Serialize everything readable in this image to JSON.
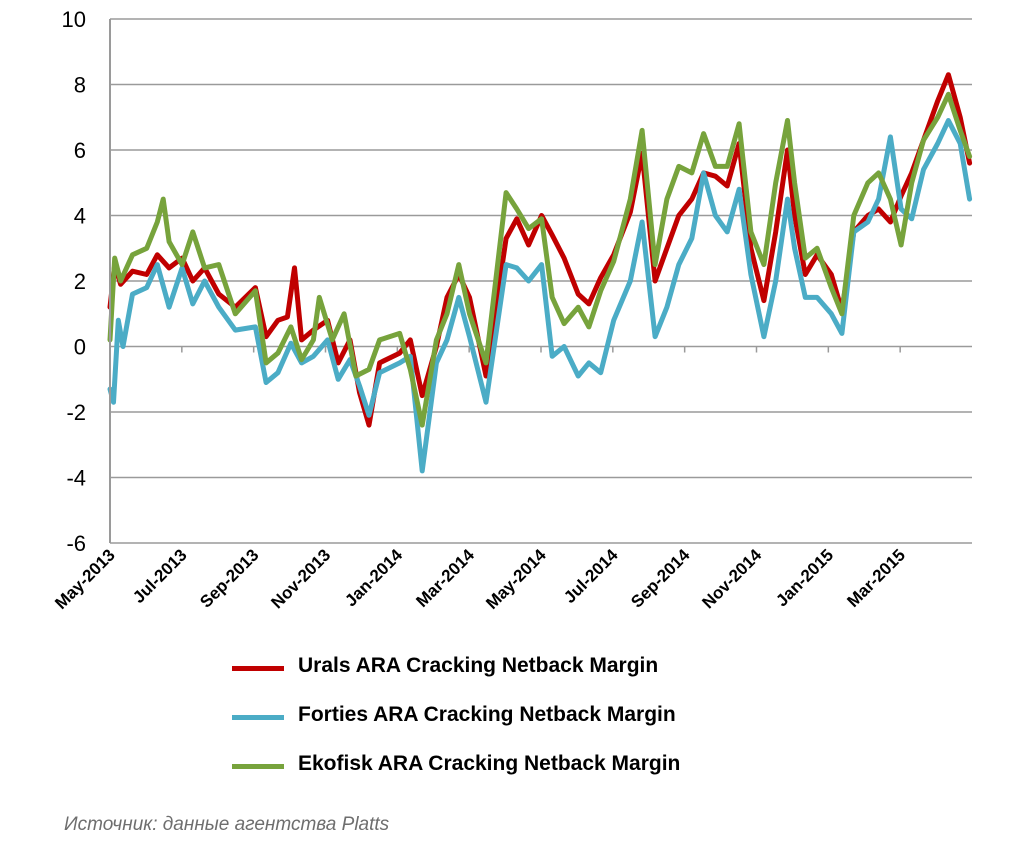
{
  "chart_data": {
    "type": "line",
    "title": "",
    "xlabel": "",
    "ylabel": "",
    "ylim": [
      -6,
      10
    ],
    "yticks": [
      -6,
      -4,
      -2,
      0,
      2,
      4,
      6,
      8,
      10
    ],
    "xlim": [
      "2013-05-01",
      "2015-04-30"
    ],
    "xticks": [
      "May-2013",
      "Jul-2013",
      "Sep-2013",
      "Nov-2013",
      "Jan-2014",
      "Mar-2014",
      "May-2014",
      "Jul-2014",
      "Sep-2014",
      "Nov-2014",
      "Jan-2015",
      "Mar-2015"
    ],
    "grid": "horizontal",
    "legend_position": "bottom",
    "series": [
      {
        "name": "Urals ARA Cracking Netback Margin",
        "color": "#c00000",
        "points": [
          [
            "2013-05-01",
            1.2
          ],
          [
            "2013-05-05",
            2.5
          ],
          [
            "2013-05-10",
            1.9
          ],
          [
            "2013-05-20",
            2.3
          ],
          [
            "2013-06-01",
            2.2
          ],
          [
            "2013-06-10",
            2.8
          ],
          [
            "2013-06-20",
            2.4
          ],
          [
            "2013-07-01",
            2.7
          ],
          [
            "2013-07-10",
            2.0
          ],
          [
            "2013-07-20",
            2.4
          ],
          [
            "2013-08-01",
            1.6
          ],
          [
            "2013-08-15",
            1.2
          ],
          [
            "2013-09-01",
            1.8
          ],
          [
            "2013-09-10",
            0.3
          ],
          [
            "2013-09-20",
            0.8
          ],
          [
            "2013-09-28",
            0.9
          ],
          [
            "2013-10-04",
            2.4
          ],
          [
            "2013-10-10",
            0.2
          ],
          [
            "2013-10-20",
            0.5
          ],
          [
            "2013-11-01",
            0.8
          ],
          [
            "2013-11-10",
            -0.5
          ],
          [
            "2013-11-20",
            0.2
          ],
          [
            "2013-11-28",
            -1.4
          ],
          [
            "2013-12-06",
            -2.4
          ],
          [
            "2013-12-15",
            -0.5
          ],
          [
            "2014-01-01",
            -0.2
          ],
          [
            "2014-01-10",
            0.2
          ],
          [
            "2014-01-20",
            -1.5
          ],
          [
            "2014-02-01",
            0.0
          ],
          [
            "2014-02-10",
            1.5
          ],
          [
            "2014-02-20",
            2.2
          ],
          [
            "2014-03-01",
            1.5
          ],
          [
            "2014-03-15",
            -0.9
          ],
          [
            "2014-04-01",
            3.3
          ],
          [
            "2014-04-10",
            3.9
          ],
          [
            "2014-04-20",
            3.1
          ],
          [
            "2014-05-01",
            4.0
          ],
          [
            "2014-05-10",
            3.4
          ],
          [
            "2014-05-20",
            2.7
          ],
          [
            "2014-06-01",
            1.6
          ],
          [
            "2014-06-10",
            1.3
          ],
          [
            "2014-06-20",
            2.1
          ],
          [
            "2014-07-01",
            2.8
          ],
          [
            "2014-07-15",
            4.1
          ],
          [
            "2014-07-25",
            5.9
          ],
          [
            "2014-08-05",
            2.0
          ],
          [
            "2014-08-15",
            3.0
          ],
          [
            "2014-08-25",
            4.0
          ],
          [
            "2014-09-05",
            4.5
          ],
          [
            "2014-09-15",
            5.3
          ],
          [
            "2014-09-25",
            5.2
          ],
          [
            "2014-10-05",
            4.9
          ],
          [
            "2014-10-15",
            6.2
          ],
          [
            "2014-10-25",
            3.0
          ],
          [
            "2014-11-05",
            1.4
          ],
          [
            "2014-11-15",
            3.5
          ],
          [
            "2014-11-25",
            6.0
          ],
          [
            "2014-12-01",
            4.0
          ],
          [
            "2014-12-10",
            2.2
          ],
          [
            "2014-12-20",
            2.8
          ],
          [
            "2015-01-01",
            2.2
          ],
          [
            "2015-01-10",
            1.1
          ],
          [
            "2015-01-20",
            3.5
          ],
          [
            "2015-02-01",
            4.0
          ],
          [
            "2015-02-10",
            4.2
          ],
          [
            "2015-02-20",
            3.8
          ],
          [
            "2015-03-01",
            4.6
          ],
          [
            "2015-03-10",
            5.3
          ],
          [
            "2015-03-20",
            6.3
          ],
          [
            "2015-04-01",
            7.5
          ],
          [
            "2015-04-10",
            8.3
          ],
          [
            "2015-04-20",
            7.0
          ],
          [
            "2015-04-28",
            5.6
          ]
        ]
      },
      {
        "name": "Forties ARA Cracking Netback Margin",
        "color": "#4bacc6",
        "points": [
          [
            "2013-05-01",
            -1.3
          ],
          [
            "2013-05-04",
            -1.7
          ],
          [
            "2013-05-08",
            0.8
          ],
          [
            "2013-05-12",
            0.0
          ],
          [
            "2013-05-20",
            1.6
          ],
          [
            "2013-06-01",
            1.8
          ],
          [
            "2013-06-10",
            2.5
          ],
          [
            "2013-06-20",
            1.2
          ],
          [
            "2013-07-01",
            2.4
          ],
          [
            "2013-07-10",
            1.3
          ],
          [
            "2013-07-20",
            2.0
          ],
          [
            "2013-08-01",
            1.2
          ],
          [
            "2013-08-15",
            0.5
          ],
          [
            "2013-09-01",
            0.6
          ],
          [
            "2013-09-10",
            -1.1
          ],
          [
            "2013-09-20",
            -0.8
          ],
          [
            "2013-10-01",
            0.1
          ],
          [
            "2013-10-10",
            -0.5
          ],
          [
            "2013-10-20",
            -0.3
          ],
          [
            "2013-11-01",
            0.2
          ],
          [
            "2013-11-10",
            -1.0
          ],
          [
            "2013-11-20",
            -0.4
          ],
          [
            "2013-11-28",
            -1.2
          ],
          [
            "2013-12-06",
            -2.1
          ],
          [
            "2013-12-15",
            -0.8
          ],
          [
            "2014-01-01",
            -0.5
          ],
          [
            "2014-01-10",
            -0.3
          ],
          [
            "2014-01-20",
            -3.8
          ],
          [
            "2014-02-01",
            -0.5
          ],
          [
            "2014-02-10",
            0.2
          ],
          [
            "2014-02-20",
            1.5
          ],
          [
            "2014-03-01",
            0.3
          ],
          [
            "2014-03-15",
            -1.7
          ],
          [
            "2014-04-01",
            2.5
          ],
          [
            "2014-04-10",
            2.4
          ],
          [
            "2014-04-20",
            2.0
          ],
          [
            "2014-05-01",
            2.5
          ],
          [
            "2014-05-10",
            -0.3
          ],
          [
            "2014-05-20",
            0.0
          ],
          [
            "2014-06-01",
            -0.9
          ],
          [
            "2014-06-10",
            -0.5
          ],
          [
            "2014-06-20",
            -0.8
          ],
          [
            "2014-07-01",
            0.8
          ],
          [
            "2014-07-15",
            2.0
          ],
          [
            "2014-07-25",
            3.8
          ],
          [
            "2014-08-05",
            0.3
          ],
          [
            "2014-08-15",
            1.2
          ],
          [
            "2014-08-25",
            2.5
          ],
          [
            "2014-09-05",
            3.3
          ],
          [
            "2014-09-15",
            5.3
          ],
          [
            "2014-09-25",
            4.0
          ],
          [
            "2014-10-05",
            3.5
          ],
          [
            "2014-10-15",
            4.8
          ],
          [
            "2014-10-25",
            2.2
          ],
          [
            "2014-11-05",
            0.3
          ],
          [
            "2014-11-15",
            2.0
          ],
          [
            "2014-11-25",
            4.5
          ],
          [
            "2014-12-01",
            3.0
          ],
          [
            "2014-12-10",
            1.5
          ],
          [
            "2014-12-20",
            1.5
          ],
          [
            "2015-01-01",
            1.0
          ],
          [
            "2015-01-10",
            0.4
          ],
          [
            "2015-01-20",
            3.5
          ],
          [
            "2015-02-01",
            3.8
          ],
          [
            "2015-02-10",
            4.5
          ],
          [
            "2015-02-20",
            6.4
          ],
          [
            "2015-03-01",
            4.2
          ],
          [
            "2015-03-10",
            3.9
          ],
          [
            "2015-03-20",
            5.4
          ],
          [
            "2015-04-01",
            6.2
          ],
          [
            "2015-04-10",
            6.9
          ],
          [
            "2015-04-20",
            6.2
          ],
          [
            "2015-04-28",
            4.5
          ]
        ]
      },
      {
        "name": "Ekofisk ARA Cracking Netback Margin",
        "color": "#77a33c",
        "points": [
          [
            "2013-05-01",
            0.2
          ],
          [
            "2013-05-05",
            2.7
          ],
          [
            "2013-05-10",
            2.0
          ],
          [
            "2013-05-20",
            2.8
          ],
          [
            "2013-06-01",
            3.0
          ],
          [
            "2013-06-10",
            3.8
          ],
          [
            "2013-06-15",
            4.5
          ],
          [
            "2013-06-20",
            3.2
          ],
          [
            "2013-07-01",
            2.5
          ],
          [
            "2013-07-10",
            3.5
          ],
          [
            "2013-07-20",
            2.4
          ],
          [
            "2013-08-01",
            2.5
          ],
          [
            "2013-08-15",
            1.0
          ],
          [
            "2013-09-01",
            1.7
          ],
          [
            "2013-09-10",
            -0.5
          ],
          [
            "2013-09-20",
            -0.2
          ],
          [
            "2013-10-01",
            0.6
          ],
          [
            "2013-10-10",
            -0.4
          ],
          [
            "2013-10-20",
            0.2
          ],
          [
            "2013-10-25",
            1.5
          ],
          [
            "2013-11-05",
            0.2
          ],
          [
            "2013-11-15",
            1.0
          ],
          [
            "2013-11-25",
            -0.9
          ],
          [
            "2013-12-06",
            -0.7
          ],
          [
            "2013-12-15",
            0.2
          ],
          [
            "2014-01-01",
            0.4
          ],
          [
            "2014-01-10",
            -0.7
          ],
          [
            "2014-01-20",
            -2.4
          ],
          [
            "2014-02-01",
            0.2
          ],
          [
            "2014-02-10",
            1.0
          ],
          [
            "2014-02-20",
            2.5
          ],
          [
            "2014-03-01",
            1.0
          ],
          [
            "2014-03-15",
            -0.5
          ],
          [
            "2014-04-01",
            4.7
          ],
          [
            "2014-04-10",
            4.2
          ],
          [
            "2014-04-20",
            3.6
          ],
          [
            "2014-05-01",
            3.9
          ],
          [
            "2014-05-10",
            1.5
          ],
          [
            "2014-05-20",
            0.7
          ],
          [
            "2014-06-01",
            1.2
          ],
          [
            "2014-06-10",
            0.6
          ],
          [
            "2014-06-20",
            1.7
          ],
          [
            "2014-07-01",
            2.6
          ],
          [
            "2014-07-15",
            4.5
          ],
          [
            "2014-07-25",
            6.6
          ],
          [
            "2014-08-05",
            2.5
          ],
          [
            "2014-08-15",
            4.5
          ],
          [
            "2014-08-25",
            5.5
          ],
          [
            "2014-09-05",
            5.3
          ],
          [
            "2014-09-15",
            6.5
          ],
          [
            "2014-09-25",
            5.5
          ],
          [
            "2014-10-05",
            5.5
          ],
          [
            "2014-10-15",
            6.8
          ],
          [
            "2014-10-25",
            3.5
          ],
          [
            "2014-11-05",
            2.5
          ],
          [
            "2014-11-15",
            5.0
          ],
          [
            "2014-11-25",
            6.9
          ],
          [
            "2014-12-01",
            5.0
          ],
          [
            "2014-12-10",
            2.7
          ],
          [
            "2014-12-20",
            3.0
          ],
          [
            "2015-01-01",
            1.8
          ],
          [
            "2015-01-10",
            1.0
          ],
          [
            "2015-01-20",
            4.0
          ],
          [
            "2015-02-01",
            5.0
          ],
          [
            "2015-02-10",
            5.3
          ],
          [
            "2015-02-20",
            4.5
          ],
          [
            "2015-03-01",
            3.1
          ],
          [
            "2015-03-10",
            5.0
          ],
          [
            "2015-03-20",
            6.3
          ],
          [
            "2015-04-01",
            7.0
          ],
          [
            "2015-04-10",
            7.7
          ],
          [
            "2015-04-20",
            6.6
          ],
          [
            "2015-04-28",
            5.8
          ]
        ]
      }
    ]
  },
  "source_note": "Источник: данные агентства Platts"
}
